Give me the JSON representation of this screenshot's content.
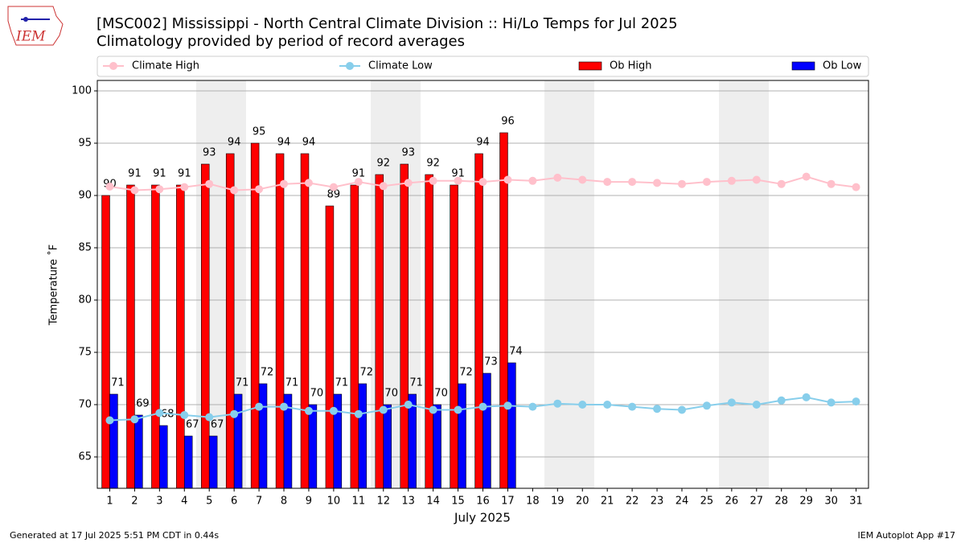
{
  "logo_text": "IEM",
  "footer_left": "Generated at 17 Jul 2025 5:51 PM CDT in 0.44s",
  "footer_right": "IEM Autoplot App #17",
  "chart_data": {
    "type": "bar",
    "title": "[MSC002] Mississippi - North Central Climate Division :: Hi/Lo Temps for Jul 2025",
    "subtitle": "Climatology provided by period of record averages",
    "xlabel": "July 2025",
    "ylabel": "Temperature ˚F",
    "x": [
      1,
      2,
      3,
      4,
      5,
      6,
      7,
      8,
      9,
      10,
      11,
      12,
      13,
      14,
      15,
      16,
      17,
      18,
      19,
      20,
      21,
      22,
      23,
      24,
      25,
      26,
      27,
      28,
      29,
      30,
      31
    ],
    "xlim": [
      0.5,
      31.5
    ],
    "xticks": [
      1,
      2,
      3,
      4,
      5,
      6,
      7,
      8,
      9,
      10,
      11,
      12,
      13,
      14,
      15,
      16,
      17,
      18,
      19,
      20,
      21,
      22,
      23,
      24,
      25,
      26,
      27,
      28,
      29,
      30,
      31
    ],
    "ylim": [
      62,
      101
    ],
    "yticks": [
      65,
      70,
      75,
      80,
      85,
      90,
      95,
      100
    ],
    "grid": true,
    "legend": "top",
    "series": [
      {
        "name": "Climate High",
        "type": "line",
        "color": "#ffc0cb",
        "values": [
          90.85,
          90.5,
          90.6,
          90.8,
          91.1,
          90.5,
          90.6,
          91.1,
          91.2,
          90.8,
          91.3,
          90.9,
          91.2,
          91.4,
          91.4,
          91.3,
          91.5,
          91.4,
          91.7,
          91.5,
          91.3,
          91.3,
          91.2,
          91.1,
          91.3,
          91.4,
          91.5,
          91.1,
          91.8,
          91.1,
          90.8
        ]
      },
      {
        "name": "Climate Low",
        "type": "line",
        "color": "#87ceeb",
        "values": [
          68.5,
          68.6,
          69.2,
          69.0,
          68.8,
          69.1,
          69.8,
          69.8,
          69.4,
          69.4,
          69.1,
          69.5,
          70.0,
          69.5,
          69.5,
          69.8,
          69.9,
          69.8,
          70.1,
          70.0,
          70.0,
          69.8,
          69.6,
          69.5,
          69.9,
          70.2,
          70.0,
          70.4,
          70.7,
          70.2,
          70.3
        ]
      },
      {
        "name": "Ob High",
        "type": "bar",
        "color": "#ff0000",
        "values": [
          90,
          91,
          91,
          91,
          93,
          94,
          95,
          94,
          94,
          89,
          91,
          92,
          93,
          92,
          91,
          94,
          96,
          null,
          null,
          null,
          null,
          null,
          null,
          null,
          null,
          null,
          null,
          null,
          null,
          null,
          null
        ]
      },
      {
        "name": "Ob Low",
        "type": "bar",
        "color": "#0000ff",
        "values": [
          71,
          69,
          68,
          67,
          67,
          71,
          72,
          71,
          70,
          71,
          72,
          70,
          71,
          70,
          72,
          73,
          74,
          null,
          null,
          null,
          null,
          null,
          null,
          null,
          null,
          null,
          null,
          null,
          null,
          null,
          null
        ]
      }
    ]
  }
}
